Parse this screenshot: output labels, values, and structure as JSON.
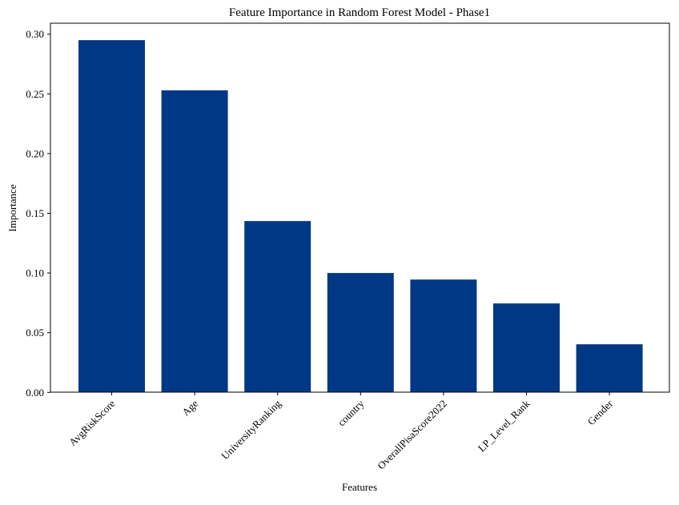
{
  "chart_data": {
    "type": "bar",
    "title": "Feature Importance in Random Forest Model - Phase1",
    "xlabel": "Features",
    "ylabel": "Importance",
    "categories": [
      "AvgRiskScore",
      "Age",
      "UniversityRanking",
      "country",
      "OverallPisaScore2022",
      "LP_Level_Rank",
      "Gender"
    ],
    "values": [
      0.295,
      0.253,
      0.1435,
      0.1,
      0.0945,
      0.0745,
      0.0403
    ],
    "ylim": [
      0,
      0.31
    ],
    "yticks": [
      "0.00",
      "0.05",
      "0.10",
      "0.15",
      "0.20",
      "0.25",
      "0.30"
    ],
    "grid": false,
    "bar_color": "#003886"
  }
}
